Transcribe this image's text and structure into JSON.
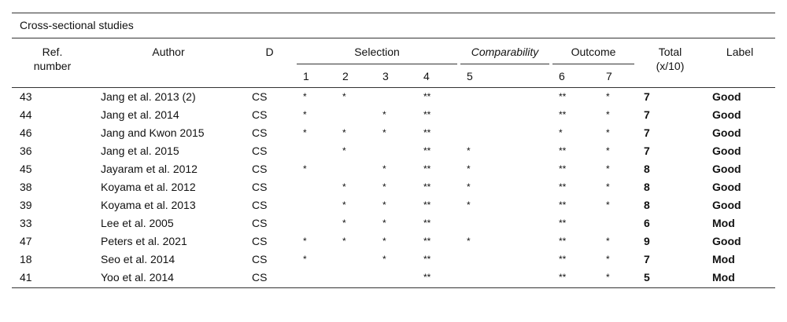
{
  "table": {
    "caption": "Cross-sectional studies",
    "header": {
      "ref": "Ref. number",
      "author": "Author",
      "d": "D",
      "selection": "Selection",
      "comparability": "Comparability",
      "outcome": "Outcome",
      "total": "Total (x/10)",
      "label": "Label",
      "items": [
        1,
        2,
        3,
        4,
        5,
        6,
        7
      ]
    },
    "rows": [
      [
        43,
        "Jang et al. 2013 (2)",
        "CS",
        "*",
        "*",
        null,
        "**",
        null,
        "**",
        "*",
        7,
        "Good"
      ],
      [
        44,
        "Jang et al. 2014",
        "CS",
        "*",
        null,
        "*",
        "**",
        null,
        "**",
        "*",
        7,
        "Good"
      ],
      [
        46,
        "Jang and Kwon 2015",
        "CS",
        "*",
        "*",
        "*",
        "**",
        null,
        "*",
        "*",
        7,
        "Good"
      ],
      [
        36,
        "Jang et al. 2015",
        "CS",
        null,
        "*",
        null,
        "**",
        "*",
        "**",
        "*",
        7,
        "Good"
      ],
      [
        45,
        "Jayaram et al. 2012",
        "CS",
        "*",
        null,
        "*",
        "**",
        "*",
        "**",
        "*",
        8,
        "Good"
      ],
      [
        38,
        "Koyama et al. 2012",
        "CS",
        null,
        "*",
        "*",
        "**",
        "*",
        "**",
        "*",
        8,
        "Good"
      ],
      [
        39,
        "Koyama et al. 2013",
        "CS",
        null,
        "*",
        "*",
        "**",
        "*",
        "**",
        "*",
        8,
        "Good"
      ],
      [
        33,
        "Lee et al. 2005",
        "CS",
        null,
        "*",
        "*",
        "**",
        null,
        "**",
        null,
        6,
        "Mod"
      ],
      [
        47,
        "Peters et al. 2021",
        "CS",
        "*",
        "*",
        "*",
        "**",
        "*",
        "**",
        "*",
        9,
        "Good"
      ],
      [
        18,
        "Seo et al. 2014",
        "CS",
        "*",
        null,
        "*",
        "**",
        null,
        "**",
        "*",
        7,
        "Mod"
      ],
      [
        41,
        "Yoo et al. 2014",
        "CS",
        null,
        null,
        null,
        "**",
        null,
        "**",
        "*",
        5,
        "Mod"
      ]
    ]
  }
}
